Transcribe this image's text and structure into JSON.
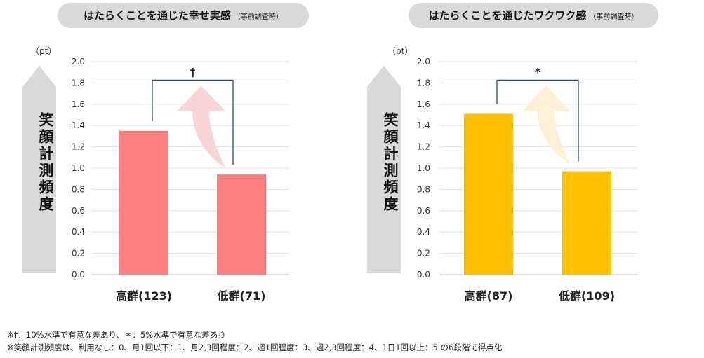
{
  "chart_data": [
    {
      "type": "bar",
      "title": "はたらくことを通じた幸せ実感",
      "subtitle": "（事前調査時）",
      "unit": "（pt）",
      "ylabel": "笑顔計測頻度",
      "categories": [
        "高群(123)",
        "低群(71)"
      ],
      "values": [
        1.35,
        0.94
      ],
      "ylim": [
        0,
        2.0
      ],
      "yticks": [
        "0.0",
        "0.2",
        "0.4",
        "0.6",
        "0.8",
        "1.0",
        "1.2",
        "1.4",
        "1.6",
        "1.8",
        "2.0"
      ],
      "grid": true,
      "bar_color": "#ff7f7f",
      "arrow_color": "#f7cfcf",
      "significance": "†"
    },
    {
      "type": "bar",
      "title": "はたらくことを通じたワクワク感",
      "subtitle": "（事前調査時）",
      "unit": "（pt）",
      "ylabel": "笑顔計測頻度",
      "categories": [
        "高群(87)",
        "低群(109)"
      ],
      "values": [
        1.51,
        0.97
      ],
      "ylim": [
        0,
        2.0
      ],
      "yticks": [
        "0.0",
        "0.2",
        "0.4",
        "0.6",
        "0.8",
        "1.0",
        "1.2",
        "1.4",
        "1.6",
        "1.8",
        "2.0"
      ],
      "grid": true,
      "bar_color": "#ffc000",
      "arrow_color": "#fdeed2",
      "significance": "*"
    }
  ],
  "notes": [
    "※†：10%水準で有意な差あり、＊：5%水準で有意な差あり",
    "※笑顔計測頻度は、利用なし：0、月1回以下：1、月2,3回程度：2、週1回程度：3、週2,3回程度：4、1日1回以上：5 の6段階で得点化"
  ]
}
